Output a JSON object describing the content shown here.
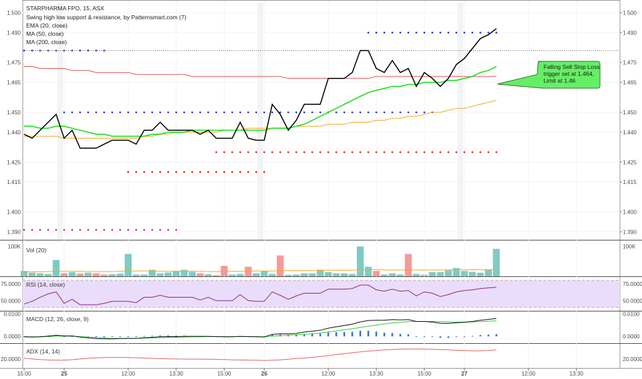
{
  "header": {
    "symbol_line": "STARPHARMA FPO, 15, ASX",
    "indicators": [
      "Swing high low support & resistance, by Patternsmart.com (7)",
      "EMA (20, close)",
      "MA (50, close)",
      "MA (200, close)"
    ]
  },
  "callout": {
    "line1": "Falling Sell Stop Loss",
    "line2": "trigger set at 1.464,",
    "line3": "Limit at 1.46"
  },
  "colors": {
    "price": "#000000",
    "ema": "#22dd22",
    "ma50": "#f5a623",
    "ma200": "#e55353",
    "support": "#e02020",
    "resistance": "#1f2fd6",
    "vol_up": "#7fcbc4",
    "vol_down": "#f49a9a",
    "rsi_line": "#8b2a8b",
    "rsi_band": "#eadcfb",
    "macd_line": "#111111",
    "signal_line": "#33cc33",
    "hist": "#2f6fd6",
    "adx": "#e06666",
    "callout_fill": "#66ee66"
  },
  "x_axis": {
    "labels": [
      "15:00",
      "25",
      "12:00",
      "13:30",
      "15:00",
      "26",
      "12:00",
      "13:30",
      "15:00",
      "27",
      "12:00",
      "13:30"
    ],
    "label_bars": [
      0,
      5,
      13,
      19,
      25,
      30,
      38,
      44,
      50,
      55,
      63,
      69
    ],
    "bold": [
      false,
      true,
      false,
      false,
      false,
      true,
      false,
      false,
      false,
      true,
      false,
      false
    ],
    "session_separators": [
      4.5,
      29.5,
      54.5
    ]
  },
  "chart_data": [
    {
      "type": "line",
      "panel": "price",
      "ylim": [
        1.386,
        1.505
      ],
      "yticks": [
        "1.500",
        "1.490",
        "1.475",
        "1.465",
        "1.450",
        "1.440",
        "1.425",
        "1.415",
        "1.400",
        "1.390"
      ],
      "ytick_values": [
        1.5,
        1.49,
        1.475,
        1.465,
        1.45,
        1.44,
        1.425,
        1.415,
        1.4,
        1.39
      ],
      "price": [
        1.439,
        1.437,
        1.441,
        1.445,
        1.449,
        1.437,
        1.441,
        1.432,
        1.432,
        1.432,
        1.434,
        1.436,
        1.436,
        1.436,
        1.434,
        1.441,
        1.441,
        1.445,
        1.441,
        1.441,
        1.441,
        1.441,
        1.439,
        1.441,
        1.437,
        1.437,
        1.437,
        1.445,
        1.437,
        1.436,
        1.436,
        1.454,
        1.449,
        1.441,
        1.446,
        1.454,
        1.454,
        1.454,
        1.467,
        1.467,
        1.467,
        1.47,
        1.481,
        1.481,
        1.472,
        1.47,
        1.476,
        1.47,
        1.472,
        1.463,
        1.47,
        1.467,
        1.463,
        1.467,
        1.474,
        1.477,
        1.482,
        1.487,
        1.489,
        1.492
      ],
      "ema": [
        1.443,
        1.443,
        1.442,
        1.442,
        1.443,
        1.443,
        1.442,
        1.441,
        1.44,
        1.439,
        1.439,
        1.438,
        1.438,
        1.438,
        1.438,
        1.438,
        1.439,
        1.439,
        1.44,
        1.44,
        1.44,
        1.441,
        1.441,
        1.441,
        1.441,
        1.441,
        1.441,
        1.441,
        1.441,
        1.441,
        1.441,
        1.442,
        1.442,
        1.442,
        1.443,
        1.444,
        1.446,
        1.448,
        1.45,
        1.452,
        1.454,
        1.456,
        1.458,
        1.46,
        1.461,
        1.462,
        1.463,
        1.463,
        1.464,
        1.464,
        1.465,
        1.465,
        1.465,
        1.466,
        1.466,
        1.467,
        1.468,
        1.47,
        1.471,
        1.473
      ],
      "ma50": [
        1.438,
        1.438,
        1.438,
        1.438,
        1.438,
        1.437,
        1.437,
        1.437,
        1.437,
        1.437,
        1.437,
        1.437,
        1.437,
        1.437,
        1.437,
        1.438,
        1.438,
        1.439,
        1.439,
        1.44,
        1.44,
        1.44,
        1.44,
        1.44,
        1.44,
        1.441,
        1.441,
        1.441,
        1.442,
        1.442,
        1.442,
        1.442,
        1.442,
        1.442,
        1.443,
        1.443,
        1.443,
        1.443,
        1.444,
        1.444,
        1.444,
        1.445,
        1.445,
        1.445,
        1.446,
        1.446,
        1.447,
        1.447,
        1.448,
        1.448,
        1.449,
        1.45,
        1.45,
        1.451,
        1.452,
        1.452,
        1.453,
        1.454,
        1.455,
        1.456
      ],
      "ma200": [
        1.473,
        1.473,
        1.472,
        1.472,
        1.472,
        1.472,
        1.471,
        1.471,
        1.471,
        1.47,
        1.47,
        1.47,
        1.47,
        1.47,
        1.469,
        1.469,
        1.469,
        1.469,
        1.469,
        1.469,
        1.469,
        1.468,
        1.468,
        1.468,
        1.468,
        1.468,
        1.468,
        1.468,
        1.468,
        1.468,
        1.468,
        1.468,
        1.468,
        1.467,
        1.467,
        1.467,
        1.467,
        1.467,
        1.467,
        1.467,
        1.467,
        1.467,
        1.467,
        1.467,
        1.468,
        1.468,
        1.468,
        1.468,
        1.468,
        1.468,
        1.468,
        1.468,
        1.468,
        1.468,
        1.468,
        1.468,
        1.468,
        1.468,
        1.468,
        1.468
      ],
      "resistance_lines": [
        {
          "level": 1.481,
          "from": 0,
          "to": 10
        },
        {
          "level": 1.45,
          "from": 5,
          "to": 51
        },
        {
          "level": 1.49,
          "from": 43,
          "to": 59
        }
      ],
      "support_lines": [
        {
          "level": 1.391,
          "from": 0,
          "to": 19
        },
        {
          "level": 1.42,
          "from": 13,
          "to": 30
        },
        {
          "level": 1.43,
          "from": 24,
          "to": 59
        }
      ],
      "dotted_level": 1.481
    },
    {
      "type": "bar",
      "panel": "volume",
      "ylabel": "Vol (20)",
      "ylim": [
        0,
        120000
      ],
      "yticks": [
        "100K"
      ],
      "ytick_values": [
        100000
      ],
      "values": [
        18000,
        12000,
        10000,
        8000,
        55000,
        10000,
        14000,
        9000,
        12000,
        10000,
        6000,
        7000,
        9000,
        75000,
        6000,
        6000,
        22000,
        10000,
        13000,
        18000,
        22000,
        15000,
        10000,
        7000,
        4000,
        35000,
        6000,
        8000,
        32000,
        10000,
        18000,
        8000,
        70000,
        5000,
        6000,
        10000,
        10000,
        22000,
        14000,
        10000,
        10000,
        8000,
        100000,
        32000,
        18000,
        6000,
        10000,
        6000,
        75000,
        8000,
        5000,
        14000,
        14000,
        20000,
        28000,
        18000,
        15000,
        12000,
        22000,
        92000
      ],
      "down": [
        false,
        false,
        false,
        false,
        false,
        true,
        false,
        true,
        false,
        true,
        true,
        false,
        false,
        false,
        false,
        false,
        false,
        false,
        false,
        false,
        false,
        false,
        true,
        false,
        true,
        true,
        false,
        false,
        true,
        false,
        false,
        false,
        true,
        false,
        false,
        false,
        false,
        false,
        false,
        false,
        false,
        false,
        false,
        false,
        true,
        false,
        false,
        false,
        true,
        false,
        false,
        false,
        false,
        false,
        false,
        false,
        false,
        false,
        false,
        false
      ],
      "avg": [
        15000,
        15000,
        15000,
        16000,
        17000,
        17000,
        17000,
        17000,
        16000,
        16000,
        16000,
        16000,
        17000,
        18000,
        18000,
        18000,
        18000,
        17000,
        17000,
        17000,
        17000,
        17000,
        17000,
        16000,
        16000,
        17000,
        17000,
        17000,
        18000,
        18000,
        18000,
        18000,
        19000,
        19000,
        19000,
        19000,
        19000,
        20000,
        20000,
        20000,
        20000,
        20000,
        22000,
        22000,
        22000,
        21000,
        21000,
        21000,
        22000,
        21000,
        21000,
        21000,
        21000,
        22000,
        22000,
        22000,
        22000,
        22000,
        22000,
        24000
      ]
    },
    {
      "type": "line",
      "panel": "rsi",
      "ylabel": "RSI (14, close)",
      "ylim": [
        35,
        85
      ],
      "yticks": [
        "75.0000",
        "50.0000"
      ],
      "ytick_values": [
        75,
        50
      ],
      "band": [
        40,
        80
      ],
      "values": [
        45,
        49,
        55,
        60,
        63,
        46,
        52,
        44,
        44,
        44,
        46,
        49,
        49,
        49,
        47,
        55,
        55,
        58,
        55,
        55,
        55,
        55,
        51,
        55,
        50,
        50,
        50,
        59,
        50,
        49,
        49,
        63,
        58,
        52,
        57,
        61,
        61,
        61,
        67,
        67,
        67,
        68,
        73,
        73,
        66,
        64,
        67,
        64,
        65,
        57,
        63,
        61,
        56,
        59,
        63,
        65,
        66,
        68,
        69,
        70
      ]
    },
    {
      "type": "line",
      "panel": "macd",
      "ylabel": "MACD (12, 26, close, 9)",
      "ylim": [
        -0.003,
        0.011
      ],
      "yticks": [
        "0.0100",
        "0.0000"
      ],
      "ytick_values": [
        0.01,
        0
      ],
      "macd": [
        -0.0002,
        -0.0003,
        -0.0002,
        0.0001,
        0.0005,
        0.0002,
        0.0002,
        -0.0003,
        -0.0007,
        -0.001,
        -0.0011,
        -0.0011,
        -0.001,
        -0.0009,
        -0.0009,
        -0.0006,
        -0.0004,
        -0.0002,
        -0.0001,
        -0.0001,
        0.0,
        0.0,
        0.0,
        0.0,
        -0.0001,
        -0.0002,
        -0.0002,
        0.0,
        -0.0001,
        -0.0002,
        -0.0003,
        0.0009,
        0.0011,
        0.0011,
        0.0013,
        0.0019,
        0.0023,
        0.0027,
        0.0036,
        0.0042,
        0.0048,
        0.0054,
        0.0064,
        0.007,
        0.0071,
        0.0071,
        0.0074,
        0.0073,
        0.0074,
        0.0066,
        0.0066,
        0.0063,
        0.0058,
        0.0057,
        0.006,
        0.0062,
        0.0066,
        0.0071,
        0.0075,
        0.0079
      ],
      "signal": [
        -0.0001,
        -0.0002,
        -0.0002,
        -0.0001,
        0.0001,
        0.0001,
        0.0001,
        -0.0001,
        -0.0003,
        -0.0005,
        -0.0007,
        -0.0009,
        -0.0009,
        -0.0009,
        -0.0009,
        -0.0008,
        -0.0007,
        -0.0006,
        -0.0005,
        -0.0004,
        -0.0003,
        -0.0002,
        -0.0002,
        -0.0001,
        -0.0001,
        -0.0001,
        -0.0001,
        -0.0001,
        -0.0001,
        -0.0001,
        -0.0002,
        0.0001,
        0.0003,
        0.0005,
        0.0007,
        0.0009,
        0.0012,
        0.0015,
        0.0019,
        0.0024,
        0.0029,
        0.0034,
        0.0039,
        0.0045,
        0.005,
        0.0055,
        0.0059,
        0.0062,
        0.0065,
        0.0066,
        0.0066,
        0.0066,
        0.0065,
        0.0064,
        0.0063,
        0.0063,
        0.0064,
        0.0065,
        0.0067,
        0.0069
      ],
      "histogram": [
        -0.0001,
        -0.0001,
        0.0,
        0.0002,
        0.0004,
        0.0001,
        0.0001,
        -0.0002,
        -0.0004,
        -0.0005,
        -0.0004,
        -0.0002,
        -0.0001,
        0.0,
        0.0,
        0.0002,
        0.0003,
        0.0004,
        0.0004,
        0.0003,
        0.0003,
        0.0002,
        0.0002,
        0.0001,
        0.0,
        -0.0001,
        -0.0001,
        0.0001,
        0.0,
        -0.0001,
        -0.0001,
        0.0008,
        0.0008,
        0.0006,
        0.0006,
        0.001,
        0.0011,
        0.0012,
        0.0017,
        0.0018,
        0.0019,
        0.002,
        0.0025,
        0.0025,
        0.0021,
        0.0016,
        0.0015,
        0.0011,
        0.0009,
        0.0,
        0.0,
        -0.0003,
        -0.0007,
        -0.0007,
        -0.0003,
        -0.0001,
        0.0002,
        0.0006,
        0.0008,
        0.001
      ]
    },
    {
      "type": "line",
      "panel": "adx",
      "ylabel": "ADX (14, 14)",
      "ylim": [
        14,
        30
      ],
      "yticks": [
        "20.0000"
      ],
      "ytick_values": [
        20
      ],
      "values": [
        20.5,
        20.0,
        19.6,
        19.3,
        19.2,
        19.2,
        19.5,
        20.0,
        20.4,
        20.7,
        20.9,
        21.0,
        21.0,
        20.9,
        20.8,
        20.6,
        20.4,
        20.2,
        20.1,
        20.0,
        19.9,
        19.9,
        19.9,
        19.8,
        19.7,
        19.6,
        19.4,
        19.3,
        19.2,
        19.1,
        19.0,
        19.1,
        19.4,
        19.8,
        20.2,
        20.6,
        21.1,
        21.6,
        22.2,
        22.9,
        23.5,
        24.1,
        24.7,
        25.2,
        25.6,
        26.0,
        26.3,
        26.5,
        26.6,
        26.6,
        26.5,
        26.4,
        26.2,
        26.0,
        25.7,
        25.5,
        25.4,
        25.4,
        25.6,
        26.0
      ]
    }
  ]
}
